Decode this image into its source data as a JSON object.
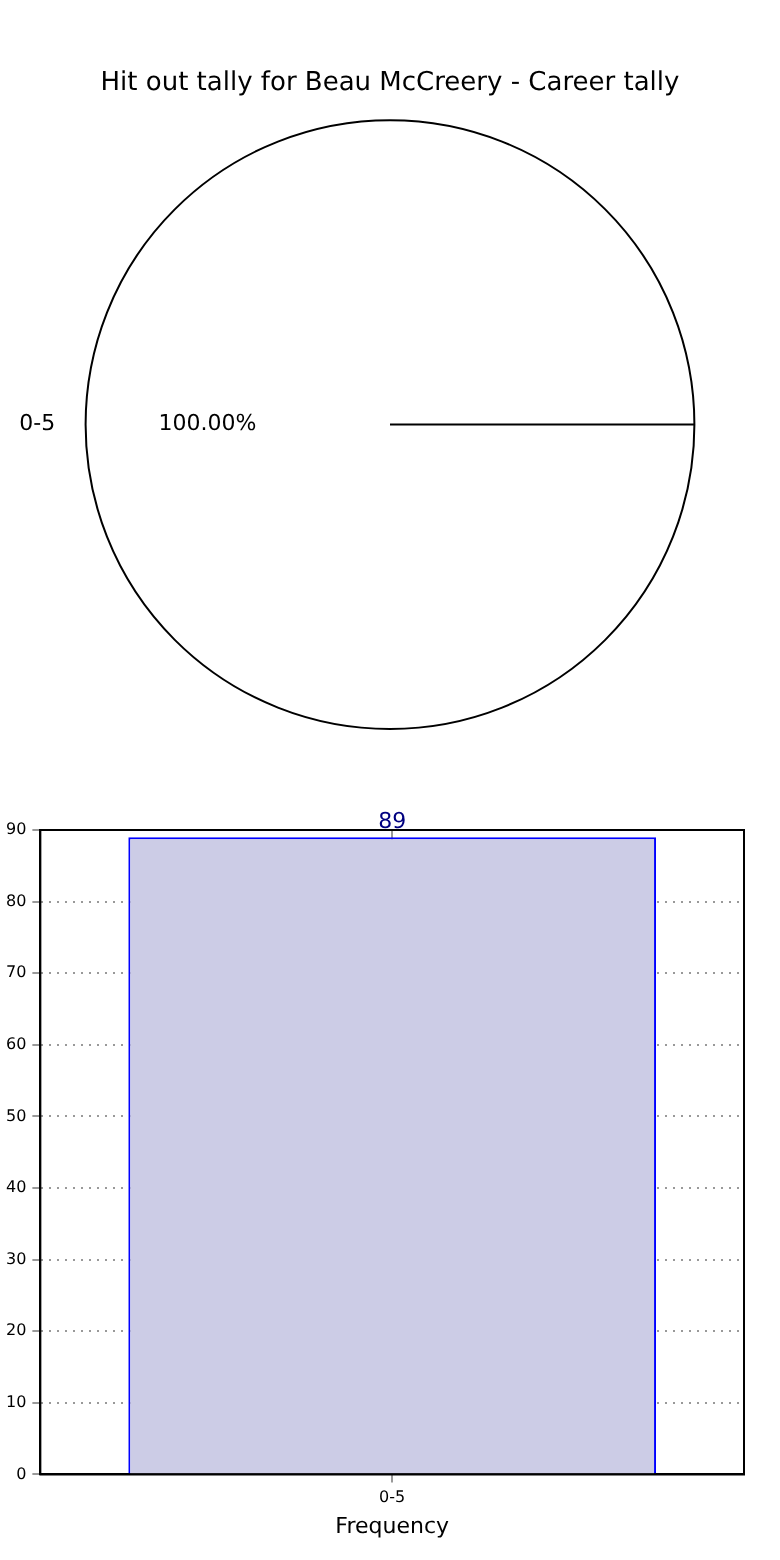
{
  "chart_data": [
    {
      "type": "pie",
      "title": "Hit out tally for Beau McCreery - Career tally",
      "categories": [
        "0-5"
      ],
      "values": [
        100
      ],
      "colors": [
        "#ffffff"
      ],
      "value_labels": [
        "100.00%"
      ]
    },
    {
      "type": "bar",
      "categories": [
        "0-5"
      ],
      "values": [
        89
      ],
      "color": "#cccce6",
      "xlabel": "Frequency",
      "ylim": [
        0,
        90
      ],
      "yticks": [
        0,
        10,
        20,
        30,
        40,
        50,
        60,
        70,
        80,
        90
      ],
      "grid": true,
      "data_labels": true
    }
  ]
}
